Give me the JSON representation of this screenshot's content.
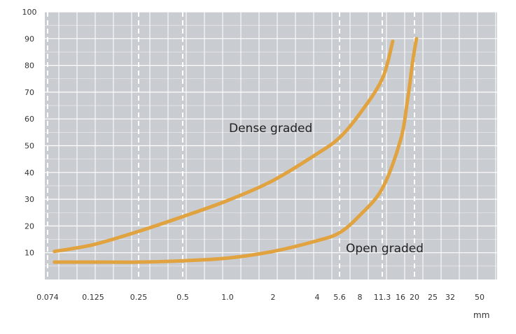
{
  "chart_data": {
    "type": "line",
    "title": "",
    "xlabel": "mm",
    "ylabel": "",
    "ylim": [
      0,
      100
    ],
    "y_ticks": [
      "10",
      "20",
      "30",
      "40",
      "50",
      "60",
      "70",
      "80",
      "90",
      "100"
    ],
    "x_ticks": [
      "0.074",
      "0.125",
      "0.25",
      "0.5",
      "1.0",
      "2",
      "4",
      "5.6",
      "8",
      "11.3",
      "16",
      "20",
      "25",
      "32",
      "50"
    ],
    "x_scale": "log",
    "grid": true,
    "legend": "none",
    "colors": {
      "background": "#c9ccd1",
      "grid": "#ffffff",
      "curve": "#e0a340"
    },
    "series": [
      {
        "name": "Dense graded",
        "x": [
          0.08,
          0.125,
          0.25,
          0.5,
          1.0,
          2,
          4,
          5.6,
          8,
          11.3,
          13.8
        ],
        "y": [
          10.5,
          13,
          18,
          23.5,
          29.5,
          37,
          47,
          53,
          62,
          75,
          89
        ]
      },
      {
        "name": "Open graded",
        "x": [
          0.08,
          0.125,
          0.25,
          0.5,
          1.0,
          2,
          4,
          5.6,
          8,
          11.3,
          16,
          18,
          19.5,
          20.5
        ],
        "y": [
          6.5,
          6.5,
          6.5,
          7,
          8,
          10.5,
          14.5,
          17.5,
          24,
          34,
          52,
          68,
          82,
          90
        ]
      }
    ]
  }
}
